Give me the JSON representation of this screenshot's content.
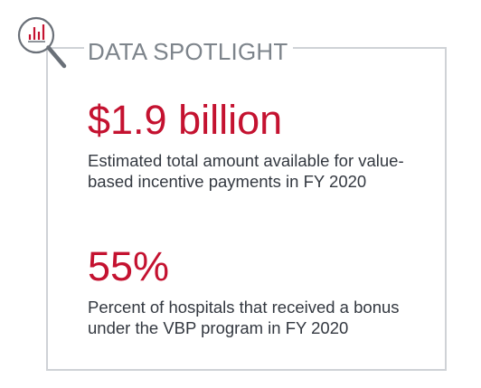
{
  "heading": "DATA SPOTLIGHT",
  "stats": [
    {
      "value": "$1.9 billion",
      "description": "Estimated total amount available for value-based incentive payments in FY 2020"
    },
    {
      "value": "55%",
      "description": "Percent of hospitals that received a bonus under the VBP program in FY 2020"
    }
  ],
  "icon": "magnifying-glass-chart-icon",
  "colors": {
    "accent": "#c41230",
    "frame": "#cfd2d6",
    "heading": "#7d848b"
  }
}
